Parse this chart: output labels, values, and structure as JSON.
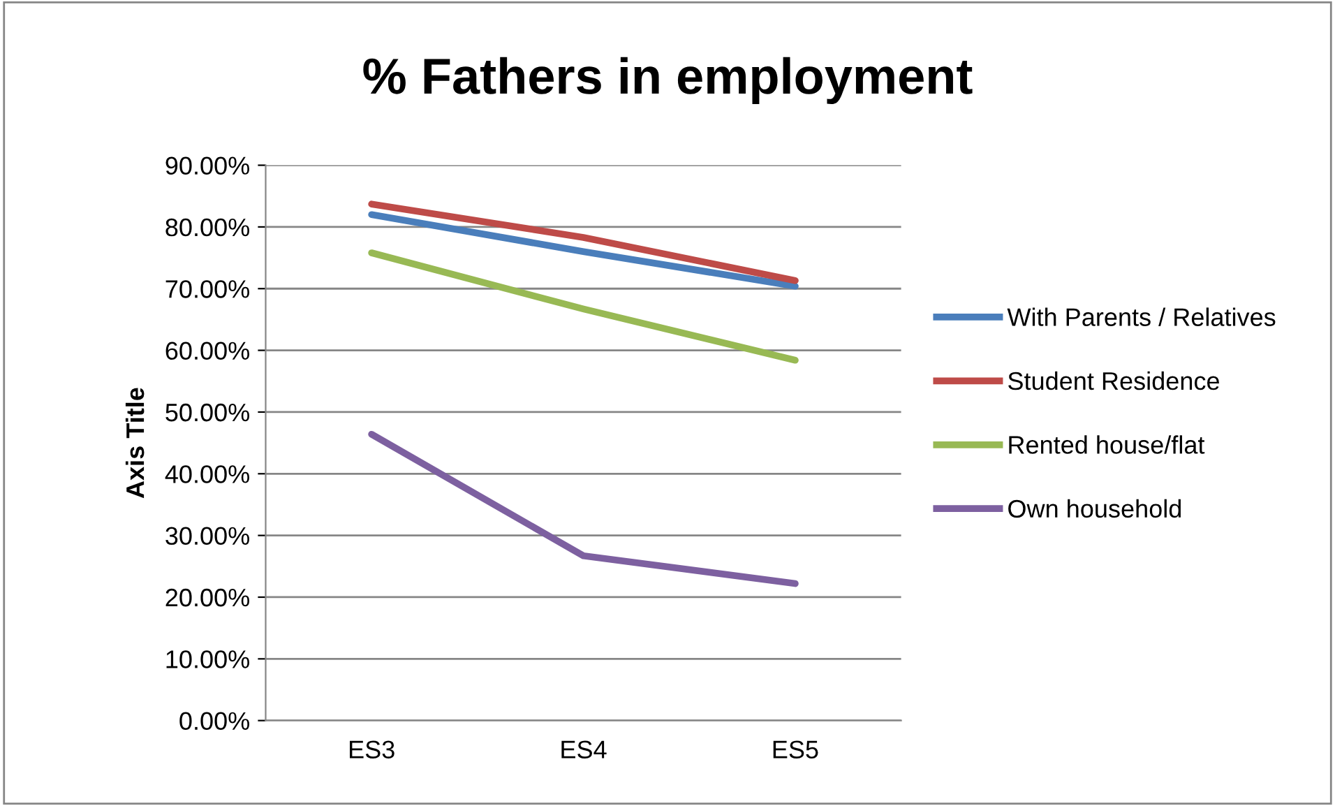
{
  "chart_data": {
    "type": "line",
    "title": "% Fathers in employment",
    "ylabel": "Axis Title",
    "categories": [
      "ES3",
      "ES4",
      "ES5"
    ],
    "series": [
      {
        "name": "With Parents / Relatives",
        "color": "#4a7ebb",
        "values": [
          82,
          76,
          70.4
        ]
      },
      {
        "name": "Student Residence",
        "color": "#be4b48",
        "values": [
          83.7,
          78.3,
          71.3
        ]
      },
      {
        "name": "Rented house/flat",
        "color": "#98b954",
        "values": [
          75.8,
          66.7,
          58.4
        ]
      },
      {
        "name": "Own household",
        "color": "#7d60a0",
        "values": [
          46.4,
          26.7,
          22.2
        ]
      }
    ],
    "ylim": [
      0,
      90
    ],
    "yticks": [
      {
        "value": 0,
        "label": "0.00%"
      },
      {
        "value": 10,
        "label": "10.00%"
      },
      {
        "value": 20,
        "label": "20.00%"
      },
      {
        "value": 30,
        "label": "30.00%"
      },
      {
        "value": 40,
        "label": "40.00%"
      },
      {
        "value": 50,
        "label": "50.00%"
      },
      {
        "value": 60,
        "label": "60.00%"
      },
      {
        "value": 70,
        "label": "70.00%"
      },
      {
        "value": 80,
        "label": "80.00%"
      },
      {
        "value": 90,
        "label": "90.00%"
      }
    ],
    "grid": "y",
    "legend": "right",
    "marker": "none",
    "line_style": "solid"
  }
}
